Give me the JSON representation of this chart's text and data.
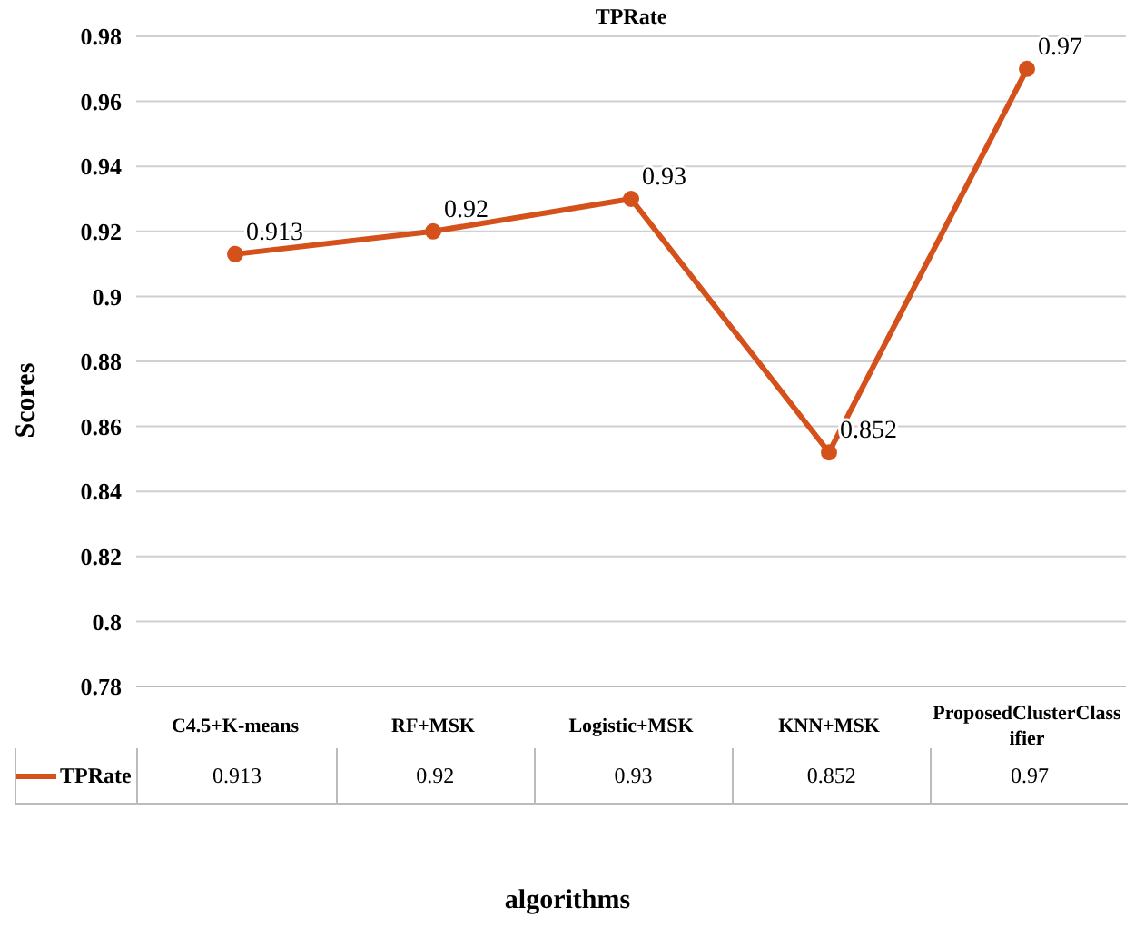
{
  "chart_data": {
    "type": "line",
    "title": "TPRate",
    "xlabel": "algorithms",
    "ylabel": "Scores",
    "categories": [
      "C4.5+K-means",
      "RF+MSK",
      "Logistic+MSK",
      "KNN+MSK",
      "ProposedClusterClassifier"
    ],
    "series": [
      {
        "name": "TPRate",
        "color": "#d4511c",
        "values": [
          0.913,
          0.92,
          0.93,
          0.852,
          0.97
        ],
        "value_labels": [
          "0.913",
          "0.92",
          "0.93",
          "0.852",
          "0.97"
        ]
      }
    ],
    "ylim": [
      0.78,
      0.98
    ],
    "yticks": [
      0.78,
      0.8,
      0.82,
      0.84,
      0.86,
      0.88,
      0.9,
      0.92,
      0.94,
      0.96,
      0.98
    ],
    "grid": "y",
    "legend": "bottom",
    "marker": "circle",
    "line_style": "solid",
    "data_labels": true
  }
}
